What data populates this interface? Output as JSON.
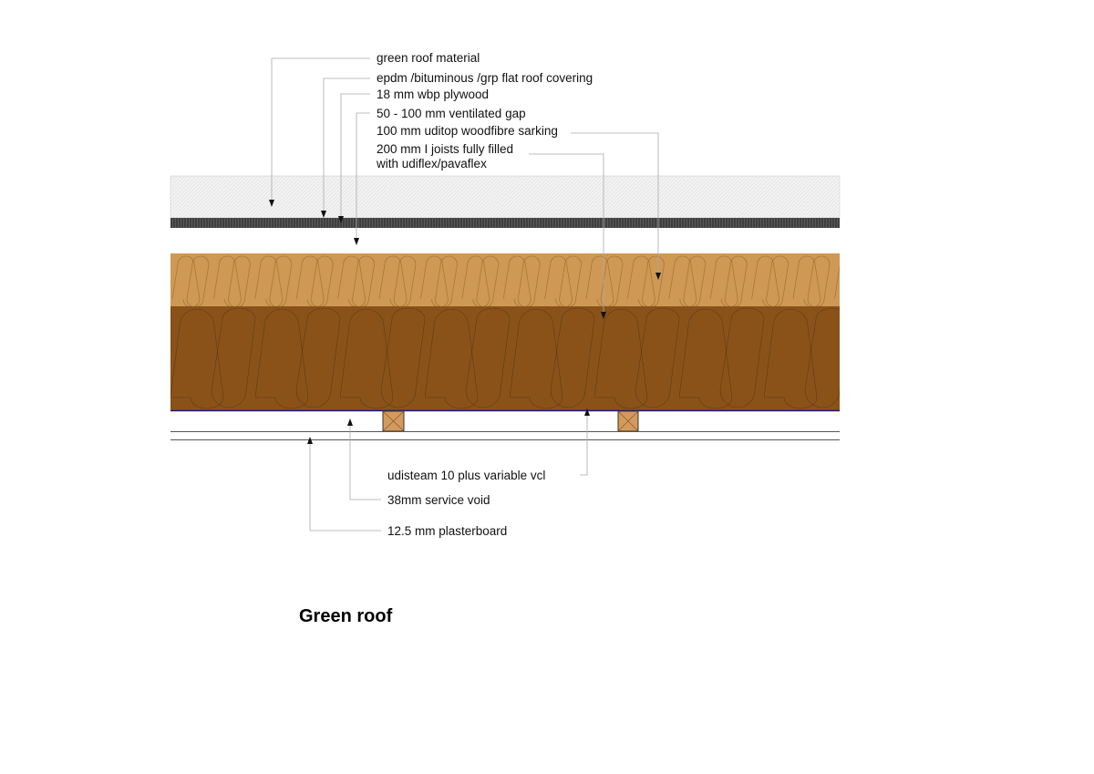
{
  "labels": {
    "green_roof": "green roof material",
    "epdm": "epdm /bituminous /grp flat roof covering",
    "plywood": "18 mm wbp plywood",
    "gap": "50 - 100 mm ventilated gap",
    "sarking": "100 mm uditop woodfibre sarking",
    "joists_line1": "200 mm I joists fully filled",
    "joists_line2": "with udiflex/pavaflex",
    "vcl": "udisteam 10 plus variable vcl",
    "service_void": "38mm service void",
    "plasterboard": "12.5 mm plasterboard"
  },
  "title": "Green roof",
  "colors": {
    "green_roof": "#f1f1f1",
    "membrane": "#474747",
    "woodfibre": "#cf9854",
    "insulation": "#8a5219",
    "vcl": "#1a1a7a",
    "batten": "#d49a5c"
  }
}
